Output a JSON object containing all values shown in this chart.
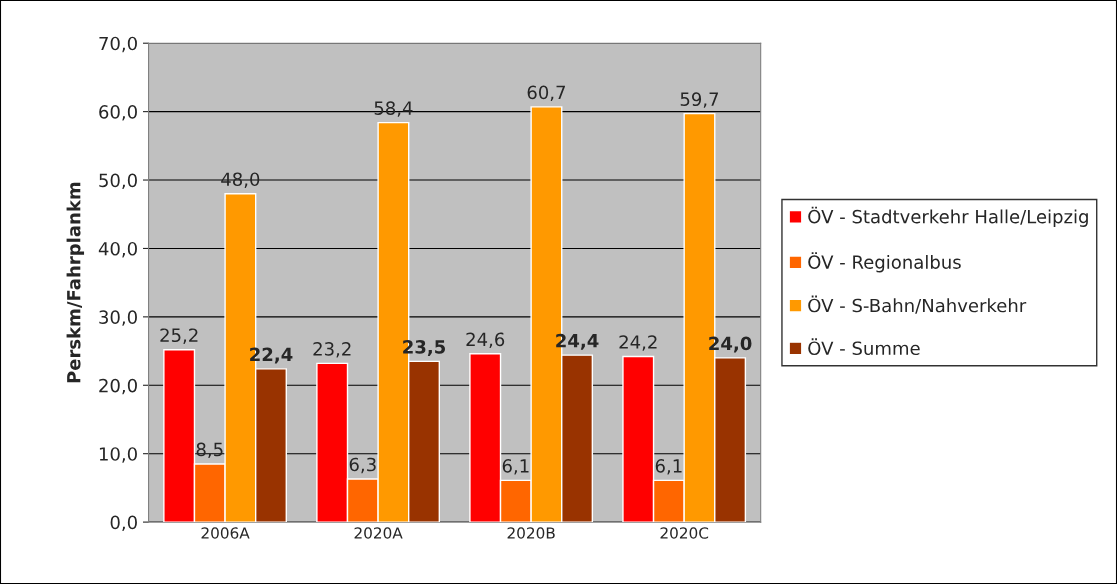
{
  "chart_data": {
    "type": "bar",
    "ylabel": "Perskm/Fahrplankm",
    "categories": [
      "2006A",
      "2020A",
      "2020B",
      "2020C"
    ],
    "series": [
      {
        "name": "ÖV - Stadtverkehr Halle/Leipzig",
        "color": "#ff0000",
        "values": [
          25.2,
          23.2,
          24.6,
          24.2
        ],
        "value_labels": [
          "25,2",
          "23,2",
          "24,6",
          "24,2"
        ]
      },
      {
        "name": "ÖV - Regionalbus",
        "color": "#ff6600",
        "values": [
          8.5,
          6.3,
          6.1,
          6.1
        ],
        "value_labels": [
          "8,5",
          "6,3",
          "6,1",
          "6,1"
        ]
      },
      {
        "name": "ÖV - S-Bahn/Nahverkehr",
        "color": "#ff9900",
        "values": [
          48.0,
          58.4,
          60.7,
          59.7
        ],
        "value_labels": [
          "48,0",
          "58,4",
          "60,7",
          "59,7"
        ]
      },
      {
        "name": "ÖV - Summe",
        "color": "#993300",
        "values": [
          22.4,
          23.5,
          24.4,
          24.0
        ],
        "value_labels": [
          "22,4",
          "23,5",
          "24,4",
          "24,0"
        ]
      }
    ],
    "ylim": [
      0,
      70
    ],
    "yticks": [
      {
        "value": 0,
        "label": "0,0"
      },
      {
        "value": 10,
        "label": "10,0"
      },
      {
        "value": 20,
        "label": "20,0"
      },
      {
        "value": 30,
        "label": "30,0"
      },
      {
        "value": 40,
        "label": "40,0"
      },
      {
        "value": 50,
        "label": "50,0"
      },
      {
        "value": 60,
        "label": "60,0"
      },
      {
        "value": 70,
        "label": "70,0"
      }
    ],
    "grid": "y",
    "legend": "right"
  }
}
